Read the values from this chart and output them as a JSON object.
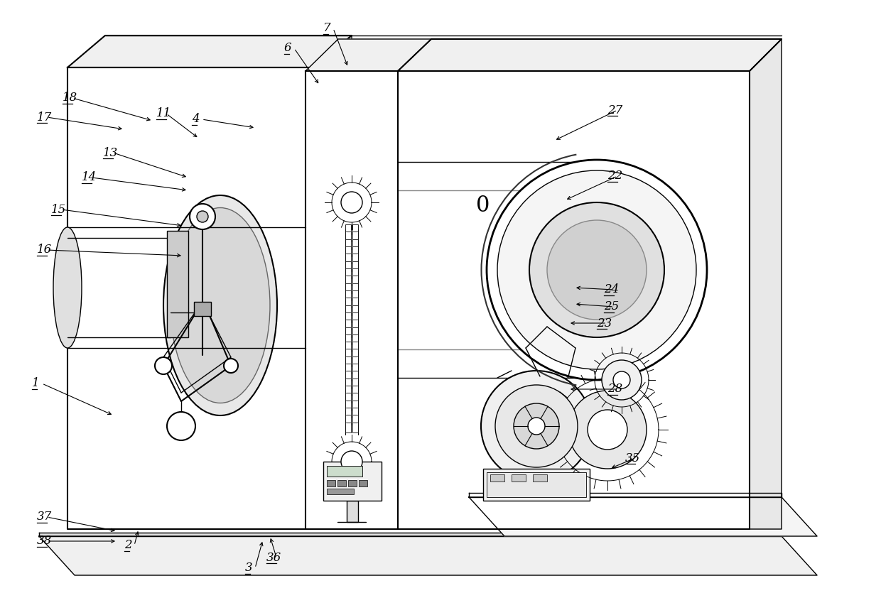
{
  "bg_color": "#ffffff",
  "line_color": "#000000",
  "label_fontsize": 12,
  "labels_underlined": [
    "2",
    "3",
    "4",
    "6",
    "7",
    "11",
    "13",
    "14",
    "15",
    "16",
    "17",
    "18",
    "22",
    "23",
    "24",
    "25",
    "27",
    "28",
    "35",
    "36",
    "37",
    "38"
  ],
  "components": "fluid_flow_automation_device"
}
